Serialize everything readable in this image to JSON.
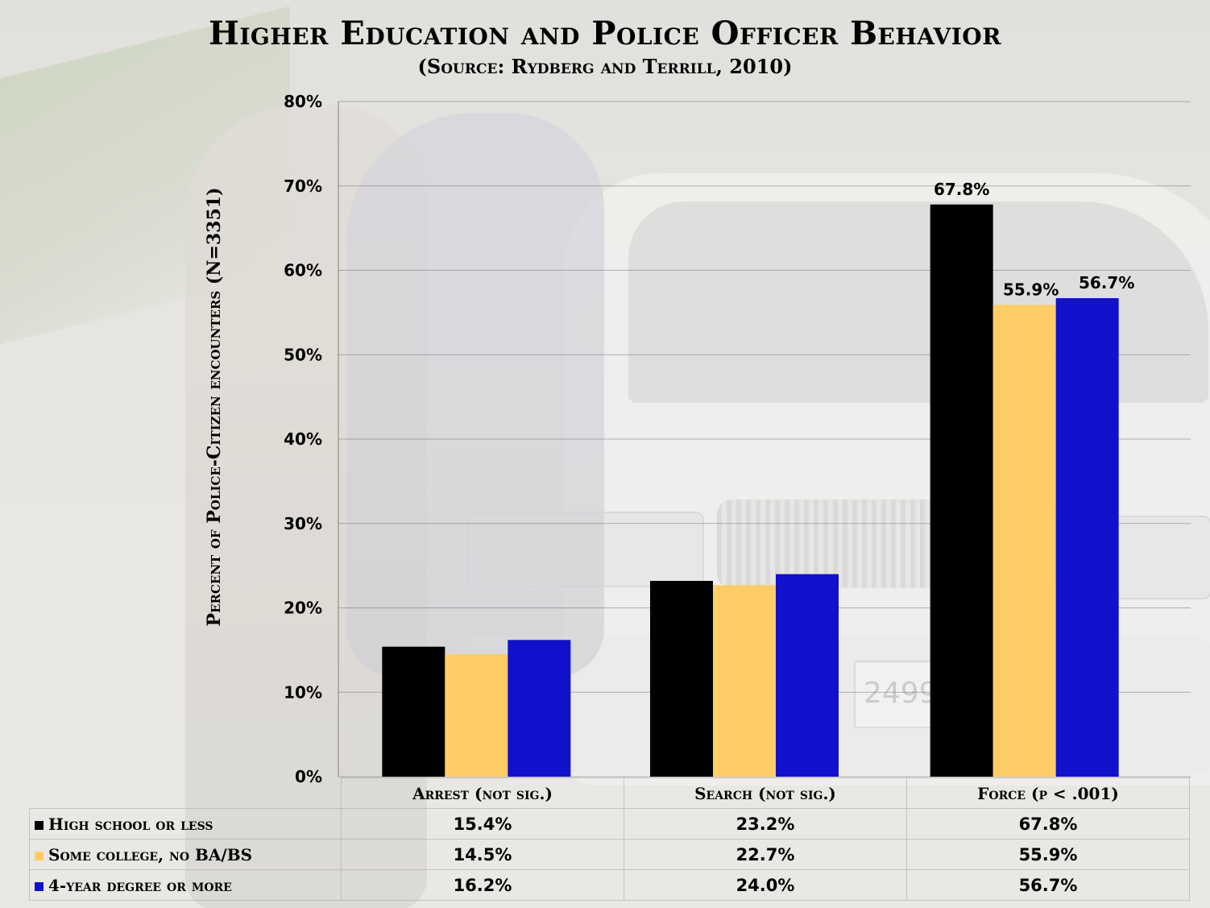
{
  "chart_data": {
    "type": "bar",
    "title": "Higher Education and Police Officer Behavior",
    "subtitle": "(Source: Rydberg and Terrill, 2010)",
    "ylabel": "Percent of Police-Citizen encounters (N=3351)",
    "ylim": [
      0,
      80
    ],
    "yticks": [
      "0%",
      "10%",
      "20%",
      "30%",
      "40%",
      "50%",
      "60%",
      "70%",
      "80%"
    ],
    "grid": true,
    "categories": [
      "Arrest (not sig.)",
      "Search (not sig.)",
      "Force (p < .001)"
    ],
    "series": [
      {
        "name": "High school or less",
        "color": "#000000",
        "values": [
          15.4,
          23.2,
          67.8
        ],
        "labels": [
          "15.4%",
          "23.2%",
          "67.8%"
        ]
      },
      {
        "name": "Some college, no BA/BS",
        "color": "#FFCC66",
        "values": [
          14.5,
          22.7,
          55.9
        ],
        "labels": [
          "14.5%",
          "22.7%",
          "55.9%"
        ]
      },
      {
        "name": "4-year degree or more",
        "color": "#1111CC",
        "values": [
          16.2,
          24.0,
          56.7
        ],
        "labels": [
          "16.2%",
          "24.0%",
          "56.7%"
        ]
      }
    ],
    "data_labels_shown": [
      [
        false,
        false,
        true
      ],
      [
        false,
        false,
        true
      ],
      [
        false,
        false,
        true
      ]
    ],
    "legend": "data table below chart"
  }
}
